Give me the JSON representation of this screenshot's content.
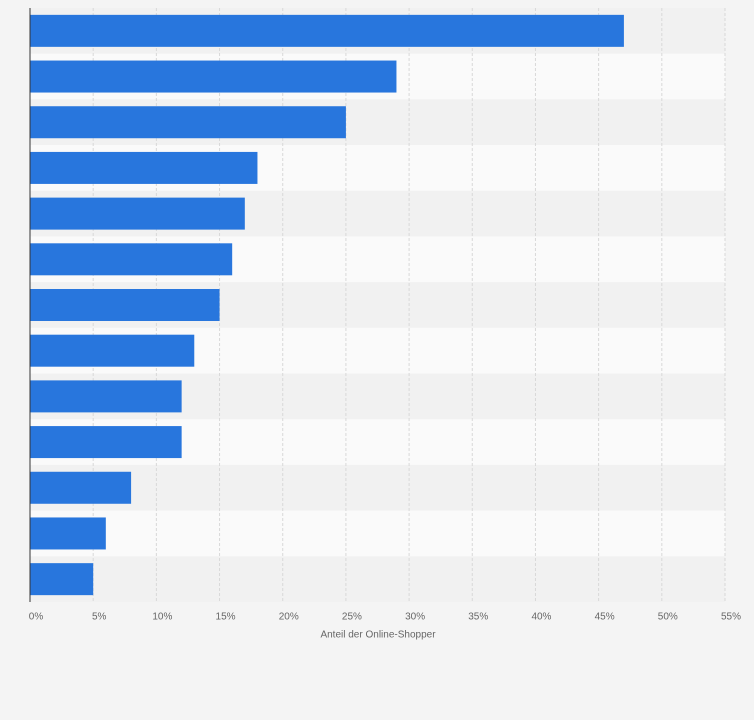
{
  "chart_data": {
    "type": "bar",
    "orientation": "horizontal",
    "categories": [
      null,
      null,
      null,
      null,
      null,
      null,
      null,
      null,
      null,
      null,
      null,
      null,
      null
    ],
    "values": [
      47,
      29,
      25,
      18,
      17,
      16,
      15,
      13,
      12,
      12,
      8,
      6,
      5
    ],
    "color": "#2876dd",
    "xlabel": "Anteil der Online-Shopper",
    "xlim": [
      0,
      55
    ],
    "xticks": [
      {
        "value": 0,
        "label": "0%"
      },
      {
        "value": 5,
        "label": "5%"
      },
      {
        "value": 10,
        "label": "10%"
      },
      {
        "value": 15,
        "label": "15%"
      },
      {
        "value": 20,
        "label": "20%"
      },
      {
        "value": 25,
        "label": "25%"
      },
      {
        "value": 30,
        "label": "30%"
      },
      {
        "value": 35,
        "label": "35%"
      },
      {
        "value": 40,
        "label": "40%"
      },
      {
        "value": 45,
        "label": "45%"
      },
      {
        "value": 50,
        "label": "50%"
      },
      {
        "value": 55,
        "label": "55%"
      }
    ],
    "grid": true
  }
}
